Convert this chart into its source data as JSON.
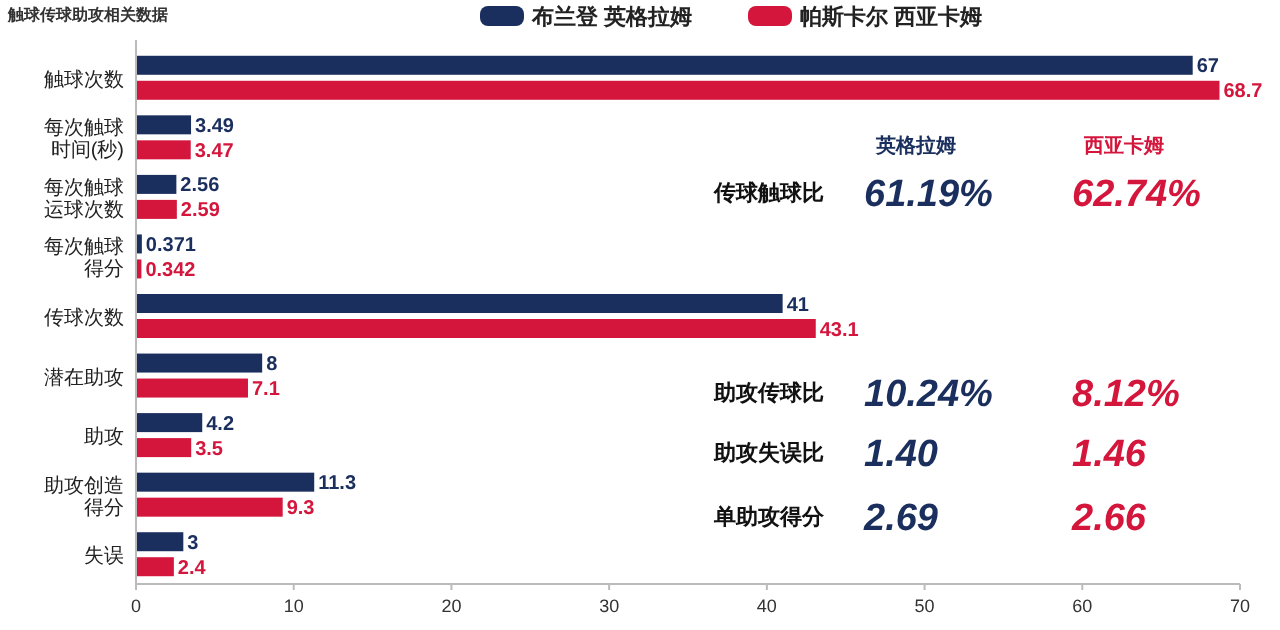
{
  "chart_data": {
    "type": "bar",
    "orientation": "horizontal",
    "title": "触球传球助攻相关数据",
    "categories": [
      "触球次数",
      "每次触球时间(秒)",
      "每次触球运球次数",
      "每次触球得分",
      "传球次数",
      "潜在助攻",
      "助攻",
      "助攻创造得分",
      "失误"
    ],
    "series": [
      {
        "name": "布兰登 英格拉姆",
        "color": "#1b2f5e",
        "values": [
          67,
          3.49,
          2.56,
          0.371,
          41,
          8,
          4.2,
          11.3,
          3
        ]
      },
      {
        "name": "帕斯卡尔 西亚卡姆",
        "color": "#d4163c",
        "values": [
          68.7,
          3.47,
          2.59,
          0.342,
          43.1,
          7.1,
          3.5,
          9.3,
          2.4
        ]
      }
    ],
    "data_labels": true,
    "xlim": [
      0,
      70
    ],
    "xticks": [
      0,
      10,
      20,
      30,
      40,
      50,
      60,
      70
    ],
    "grid": false,
    "legend": "top",
    "annotations": [
      "英格拉姆",
      "西亚卡姆",
      "传球触球比",
      "61.19%",
      "62.74%",
      "助攻传球比",
      "10.24%",
      "8.12%",
      "助攻失误比",
      "1.40",
      "1.46",
      "单助攻得分",
      "2.69",
      "2.66"
    ]
  }
}
